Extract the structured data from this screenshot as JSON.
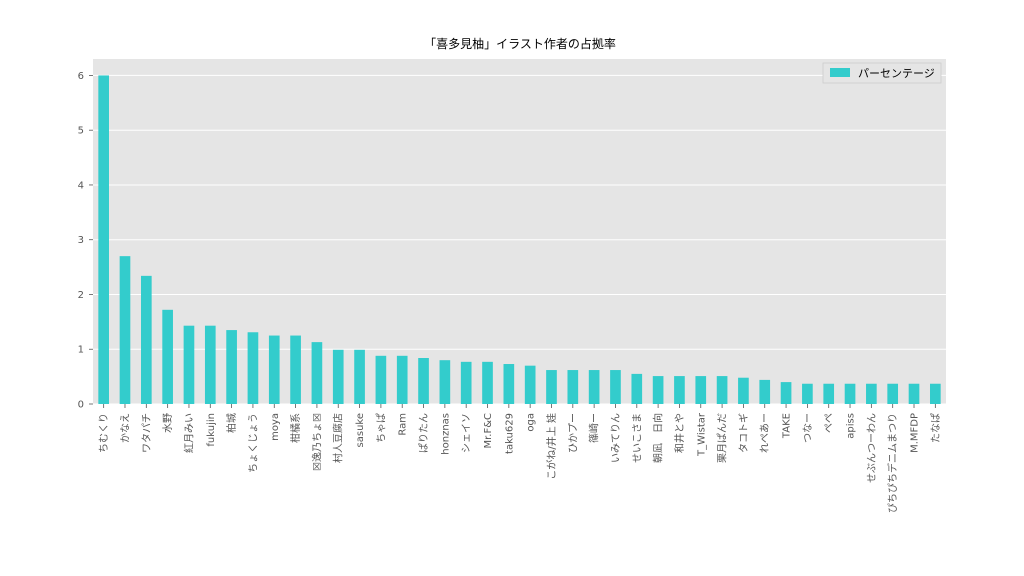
{
  "chart_data": {
    "type": "bar",
    "title": "「喜多見柚」イラスト作者の占拠率",
    "xlabel": "",
    "ylabel": "",
    "ylim": [
      0,
      6.3
    ],
    "yticks": [
      0,
      1,
      2,
      3,
      4,
      5,
      6
    ],
    "grid": true,
    "legend_position": "top-right",
    "bar_color": "#33cccc",
    "background_color": "#e5e5e5",
    "categories": [
      "ちむくり",
      "かなえ",
      "ワタパチ",
      "水野",
      "紅月みい",
      "fukujin",
      "柏城",
      "ちょくじょう",
      "moya",
      "柑橘系",
      "☒逸乃ちょ☒",
      "村人豆腐店",
      "sasuke",
      "ちゃぱ",
      "Ram",
      "ぱりたん",
      "honznas",
      "シェイソ",
      "Mr.F&C",
      "taku629",
      "oga",
      "こがね/井上 娃",
      "ひかプー",
      "篠崎ー",
      "いみてりん",
      "せいこさま",
      "朝凪　日向",
      "和井とや",
      "T_Wistar",
      "栗月ぱんだ",
      "タコトギ",
      "れぺあー",
      "TAKE",
      "つなー",
      "ぺぺ",
      "apiss",
      "せぶんつーわん",
      "ぴちぴちデニムまつり",
      "M.MFDP",
      "たなぱ"
    ],
    "series": [
      {
        "name": "パーセンテージ",
        "values": [
          6.0,
          2.7,
          2.34,
          1.72,
          1.43,
          1.43,
          1.35,
          1.31,
          1.25,
          1.25,
          1.13,
          0.99,
          0.99,
          0.88,
          0.88,
          0.84,
          0.8,
          0.77,
          0.77,
          0.73,
          0.7,
          0.62,
          0.62,
          0.62,
          0.62,
          0.55,
          0.51,
          0.51,
          0.51,
          0.51,
          0.48,
          0.44,
          0.4,
          0.37,
          0.37,
          0.37,
          0.37,
          0.37,
          0.37,
          0.37
        ]
      }
    ]
  }
}
